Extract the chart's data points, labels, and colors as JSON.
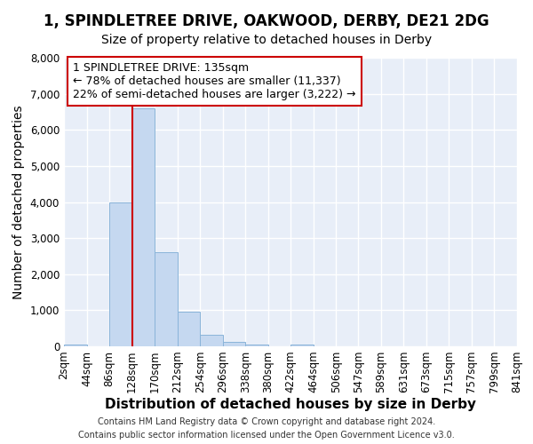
{
  "title_line1": "1, SPINDLETREE DRIVE, OAKWOOD, DERBY, DE21 2DG",
  "title_line2": "Size of property relative to detached houses in Derby",
  "xlabel": "Distribution of detached houses by size in Derby",
  "ylabel": "Number of detached properties",
  "footer_line1": "Contains HM Land Registry data © Crown copyright and database right 2024.",
  "footer_line2": "Contains public sector information licensed under the Open Government Licence v3.0.",
  "bin_edges": [
    2,
    44,
    86,
    128,
    170,
    212,
    254,
    296,
    338,
    380,
    422,
    464,
    506,
    547,
    589,
    631,
    673,
    715,
    757,
    799,
    841
  ],
  "bin_labels": [
    "2sqm",
    "44sqm",
    "86sqm",
    "128sqm",
    "170sqm",
    "212sqm",
    "254sqm",
    "296sqm",
    "338sqm",
    "380sqm",
    "422sqm",
    "464sqm",
    "506sqm",
    "547sqm",
    "589sqm",
    "631sqm",
    "673sqm",
    "715sqm",
    "757sqm",
    "799sqm",
    "841sqm"
  ],
  "bar_heights": [
    50,
    0,
    4000,
    6600,
    2600,
    950,
    330,
    130,
    50,
    0,
    50,
    0,
    0,
    0,
    0,
    0,
    0,
    0,
    0,
    0
  ],
  "bar_color": "#c5d8f0",
  "bar_edge_color": "#8ab4d9",
  "vline_x": 128,
  "vline_color": "#cc0000",
  "ylim": [
    0,
    8000
  ],
  "yticks": [
    0,
    1000,
    2000,
    3000,
    4000,
    5000,
    6000,
    7000,
    8000
  ],
  "annotation_box_text": "1 SPINDLETREE DRIVE: 135sqm\n← 78% of detached houses are smaller (11,337)\n22% of semi-detached houses are larger (3,222) →",
  "bg_color": "#e8eef8",
  "grid_color": "#ffffff",
  "title_fontsize": 12,
  "subtitle_fontsize": 10,
  "axis_label_fontsize": 10,
  "tick_fontsize": 8.5,
  "annotation_fontsize": 9
}
